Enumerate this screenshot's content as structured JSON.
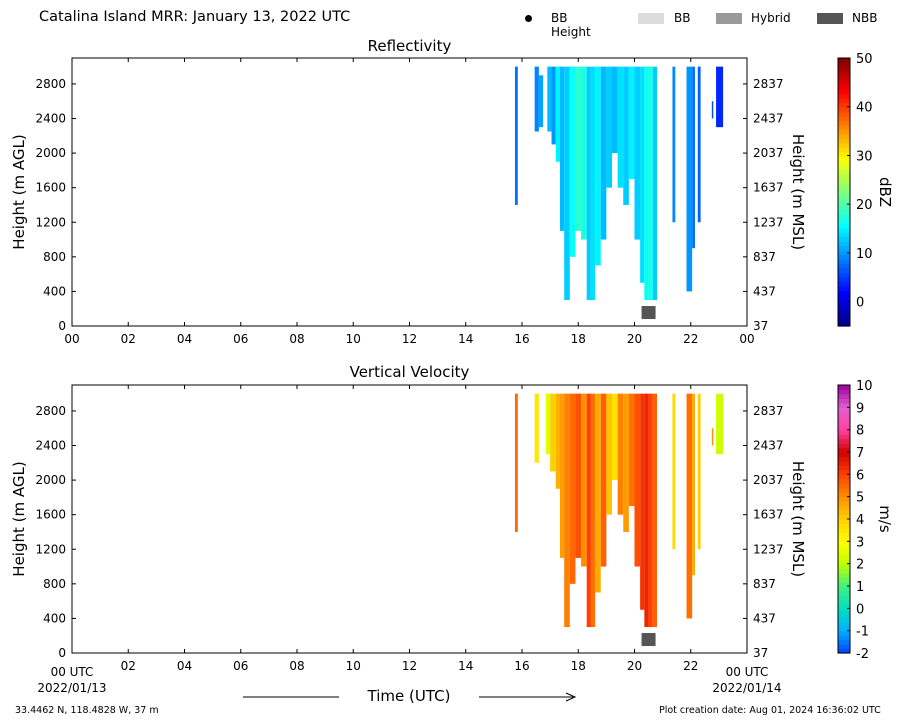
{
  "header": {
    "title": "Catalina Island MRR:  January 13, 2022 UTC",
    "legend": [
      {
        "label": "BB Height",
        "kind": "dot",
        "color": "#000000"
      },
      {
        "label": "BB",
        "kind": "swatch",
        "color": "#dcdcdc"
      },
      {
        "label": "Hybrid",
        "kind": "swatch",
        "color": "#9a9a9a"
      },
      {
        "label": "NBB",
        "kind": "swatch",
        "color": "#555555"
      }
    ]
  },
  "footer": {
    "location": "33.4462 N, 118.4828 W, 37 m",
    "creation": "Plot creation date: Aug 01, 2024 16:36:02 UTC",
    "time_label": "Time (UTC)",
    "start_time_label": "00 UTC",
    "end_time_label": "00 UTC",
    "start_date": "2022/01/13",
    "end_date": "2022/01/14"
  },
  "chart_data": [
    {
      "type": "heatmap",
      "title": "Reflectivity",
      "ylabel": "Height (m AGL)",
      "ylabel_right": "Height (m MSL)",
      "colorbar_label": "dBZ",
      "colorbar_ticks": [
        0,
        10,
        20,
        30,
        40,
        50
      ],
      "clim": [
        -5,
        50
      ],
      "colormap": [
        "#00007f",
        "#0000ff",
        "#007fff",
        "#00ffff",
        "#7fff7f",
        "#ffff00",
        "#ff7f00",
        "#ff0000",
        "#7f0000"
      ],
      "x_ticks": [
        "00",
        "02",
        "04",
        "06",
        "08",
        "10",
        "12",
        "14",
        "16",
        "18",
        "20",
        "22",
        "00"
      ],
      "xlim_hours": [
        0,
        24
      ],
      "y_ticks_agl": [
        0,
        400,
        800,
        1200,
        1600,
        2000,
        2400,
        2800
      ],
      "y_ticks_msl": [
        37,
        437,
        837,
        1237,
        1637,
        2037,
        2437,
        2837
      ],
      "ylim_m": [
        0,
        3100
      ],
      "bright_band_marks": [
        {
          "time_h": 20.5,
          "height_m": 150,
          "type": "NBB"
        }
      ],
      "columns": [
        {
          "t0": 15.75,
          "t1": 15.85,
          "h0": 1400,
          "h1": 3000,
          "v": 8
        },
        {
          "t0": 16.45,
          "t1": 16.6,
          "h0": 2250,
          "h1": 3000,
          "v": 9
        },
        {
          "t0": 16.6,
          "t1": 16.75,
          "h0": 2300,
          "h1": 2900,
          "v": 11
        },
        {
          "t0": 16.9,
          "t1": 17.05,
          "h0": 2250,
          "h1": 3000,
          "v": 12
        },
        {
          "t0": 17.05,
          "t1": 17.2,
          "h0": 2100,
          "h1": 3000,
          "v": 10
        },
        {
          "t0": 17.2,
          "t1": 17.35,
          "h0": 1900,
          "h1": 3000,
          "v": 15
        },
        {
          "t0": 17.35,
          "t1": 17.5,
          "h0": 1100,
          "h1": 3000,
          "v": 12
        },
        {
          "t0": 17.5,
          "t1": 17.7,
          "h0": 300,
          "h1": 3000,
          "v": 13
        },
        {
          "t0": 17.7,
          "t1": 17.9,
          "h0": 800,
          "h1": 3000,
          "v": 16
        },
        {
          "t0": 17.9,
          "t1": 18.1,
          "h0": 1100,
          "h1": 3000,
          "v": 18
        },
        {
          "t0": 18.1,
          "t1": 18.3,
          "h0": 1000,
          "h1": 3000,
          "v": 17
        },
        {
          "t0": 18.3,
          "t1": 18.45,
          "h0": 300,
          "h1": 3000,
          "v": 13
        },
        {
          "t0": 18.45,
          "t1": 18.6,
          "h0": 300,
          "h1": 3000,
          "v": 14
        },
        {
          "t0": 18.6,
          "t1": 18.8,
          "h0": 700,
          "h1": 3000,
          "v": 15
        },
        {
          "t0": 18.8,
          "t1": 19.0,
          "h0": 1000,
          "h1": 3000,
          "v": 12
        },
        {
          "t0": 19.0,
          "t1": 19.2,
          "h0": 1600,
          "h1": 3000,
          "v": 13
        },
        {
          "t0": 19.2,
          "t1": 19.4,
          "h0": 2000,
          "h1": 3000,
          "v": 12
        },
        {
          "t0": 19.4,
          "t1": 19.6,
          "h0": 1600,
          "h1": 3000,
          "v": 14
        },
        {
          "t0": 19.6,
          "t1": 19.8,
          "h0": 1400,
          "h1": 3000,
          "v": 13
        },
        {
          "t0": 19.8,
          "t1": 20.0,
          "h0": 1700,
          "h1": 3000,
          "v": 15
        },
        {
          "t0": 20.0,
          "t1": 20.2,
          "h0": 1000,
          "h1": 3000,
          "v": 13
        },
        {
          "t0": 20.2,
          "t1": 20.35,
          "h0": 500,
          "h1": 3000,
          "v": 14
        },
        {
          "t0": 20.35,
          "t1": 20.5,
          "h0": 300,
          "h1": 3000,
          "v": 16
        },
        {
          "t0": 20.5,
          "t1": 20.65,
          "h0": 300,
          "h1": 3000,
          "v": 17
        },
        {
          "t0": 20.65,
          "t1": 20.8,
          "h0": 300,
          "h1": 3000,
          "v": 13
        },
        {
          "t0": 21.35,
          "t1": 21.45,
          "h0": 1200,
          "h1": 3000,
          "v": 9
        },
        {
          "t0": 21.85,
          "t1": 22.05,
          "h0": 400,
          "h1": 3000,
          "v": 10
        },
        {
          "t0": 22.05,
          "t1": 22.15,
          "h0": 900,
          "h1": 3000,
          "v": 8
        },
        {
          "t0": 22.25,
          "t1": 22.35,
          "h0": 1200,
          "h1": 3000,
          "v": 7
        },
        {
          "t0": 22.75,
          "t1": 22.8,
          "h0": 2400,
          "h1": 2600,
          "v": 6
        },
        {
          "t0": 22.9,
          "t1": 23.15,
          "h0": 2300,
          "h1": 3000,
          "v": 4
        }
      ]
    },
    {
      "type": "heatmap",
      "title": "Vertical Velocity",
      "ylabel": "Height (m AGL)",
      "ylabel_right": "Height (m MSL)",
      "colorbar_label": "m/s",
      "colorbar_ticks": [
        -2,
        -1,
        0,
        1,
        2,
        3,
        4,
        5,
        6,
        7,
        8,
        9,
        10
      ],
      "clim": [
        -2,
        10
      ],
      "colormap": [
        "#0040ff",
        "#00b0ff",
        "#00e0c0",
        "#40f080",
        "#c0ff00",
        "#ffff00",
        "#ffd000",
        "#ff9000",
        "#ff4000",
        "#d00000",
        "#ff40a0",
        "#e060d0",
        "#a000a0"
      ],
      "x_ticks": [
        "00",
        "02",
        "04",
        "06",
        "08",
        "10",
        "12",
        "14",
        "16",
        "18",
        "20",
        "22",
        "00"
      ],
      "xlim_hours": [
        0,
        24
      ],
      "y_ticks_agl": [
        0,
        400,
        800,
        1200,
        1600,
        2000,
        2400,
        2800
      ],
      "y_ticks_msl": [
        37,
        437,
        837,
        1237,
        1637,
        2037,
        2437,
        2837
      ],
      "ylim_m": [
        0,
        3100
      ],
      "bright_band_marks": [
        {
          "time_h": 20.5,
          "height_m": 150,
          "type": "NBB"
        }
      ],
      "columns": [
        {
          "t0": 15.75,
          "t1": 15.85,
          "h0": 1400,
          "h1": 3000,
          "v": 5.5
        },
        {
          "t0": 16.45,
          "t1": 16.6,
          "h0": 2200,
          "h1": 3000,
          "v": 3.5
        },
        {
          "t0": 16.85,
          "t1": 17.0,
          "h0": 2300,
          "h1": 3000,
          "v": 2.5
        },
        {
          "t0": 17.0,
          "t1": 17.2,
          "h0": 2100,
          "h1": 3000,
          "v": 4.0
        },
        {
          "t0": 17.2,
          "t1": 17.35,
          "h0": 1900,
          "h1": 3000,
          "v": 4.5
        },
        {
          "t0": 17.35,
          "t1": 17.5,
          "h0": 1100,
          "h1": 3000,
          "v": 4.8
        },
        {
          "t0": 17.5,
          "t1": 17.7,
          "h0": 300,
          "h1": 3000,
          "v": 5.2
        },
        {
          "t0": 17.7,
          "t1": 17.9,
          "h0": 800,
          "h1": 3000,
          "v": 5.5
        },
        {
          "t0": 17.9,
          "t1": 18.1,
          "h0": 1100,
          "h1": 3000,
          "v": 5.8
        },
        {
          "t0": 18.1,
          "t1": 18.3,
          "h0": 1000,
          "h1": 3000,
          "v": 5.0
        },
        {
          "t0": 18.3,
          "t1": 18.45,
          "h0": 300,
          "h1": 3000,
          "v": 6.0
        },
        {
          "t0": 18.45,
          "t1": 18.6,
          "h0": 300,
          "h1": 3000,
          "v": 5.4
        },
        {
          "t0": 18.6,
          "t1": 18.8,
          "h0": 700,
          "h1": 3000,
          "v": 4.6
        },
        {
          "t0": 18.8,
          "t1": 19.0,
          "h0": 1000,
          "h1": 3000,
          "v": 5.6
        },
        {
          "t0": 19.0,
          "t1": 19.2,
          "h0": 1600,
          "h1": 3000,
          "v": 4.2
        },
        {
          "t0": 19.2,
          "t1": 19.4,
          "h0": 2000,
          "h1": 3000,
          "v": 3.6
        },
        {
          "t0": 19.4,
          "t1": 19.6,
          "h0": 1600,
          "h1": 3000,
          "v": 5.2
        },
        {
          "t0": 19.6,
          "t1": 19.8,
          "h0": 1400,
          "h1": 3000,
          "v": 4.8
        },
        {
          "t0": 19.8,
          "t1": 20.0,
          "h0": 1700,
          "h1": 3000,
          "v": 5.4
        },
        {
          "t0": 20.0,
          "t1": 20.2,
          "h0": 1000,
          "h1": 3000,
          "v": 5.8
        },
        {
          "t0": 20.2,
          "t1": 20.35,
          "h0": 500,
          "h1": 3000,
          "v": 6.2
        },
        {
          "t0": 20.35,
          "t1": 20.5,
          "h0": 300,
          "h1": 3000,
          "v": 6.4
        },
        {
          "t0": 20.5,
          "t1": 20.65,
          "h0": 300,
          "h1": 3000,
          "v": 6.0
        },
        {
          "t0": 20.65,
          "t1": 20.8,
          "h0": 300,
          "h1": 3000,
          "v": 5.6
        },
        {
          "t0": 21.35,
          "t1": 21.45,
          "h0": 1200,
          "h1": 3000,
          "v": 3.8
        },
        {
          "t0": 21.85,
          "t1": 22.05,
          "h0": 400,
          "h1": 3000,
          "v": 5.4
        },
        {
          "t0": 22.05,
          "t1": 22.15,
          "h0": 900,
          "h1": 3000,
          "v": 4.6
        },
        {
          "t0": 22.25,
          "t1": 22.35,
          "h0": 1200,
          "h1": 3000,
          "v": 4.0
        },
        {
          "t0": 22.75,
          "t1": 22.8,
          "h0": 2400,
          "h1": 2600,
          "v": 5.0
        },
        {
          "t0": 22.9,
          "t1": 23.15,
          "h0": 2300,
          "h1": 3000,
          "v": 2.2
        }
      ]
    }
  ]
}
